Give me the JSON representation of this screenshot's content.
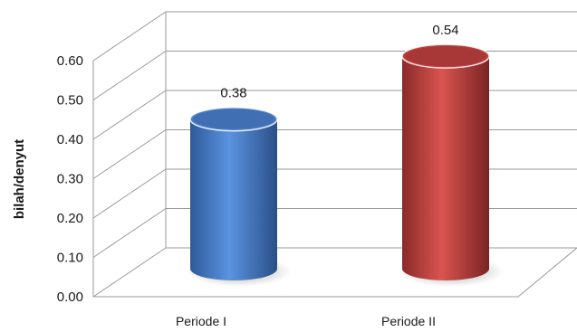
{
  "chart_data": {
    "type": "bar",
    "style": "3d-cylinder",
    "categories": [
      "Periode I",
      "Periode II"
    ],
    "values": [
      0.38,
      0.54
    ],
    "data_labels": [
      "0.38",
      "0.54"
    ],
    "colors": [
      "#4a7fcc",
      "#c0403f"
    ],
    "title": "",
    "xlabel": "",
    "ylabel": "bilah/denyut",
    "ylim": [
      0,
      0.6
    ],
    "yticks": [
      "0.00",
      "0.10",
      "0.20",
      "0.30",
      "0.40",
      "0.50",
      "0.60"
    ],
    "grid": true,
    "legend": "none"
  }
}
